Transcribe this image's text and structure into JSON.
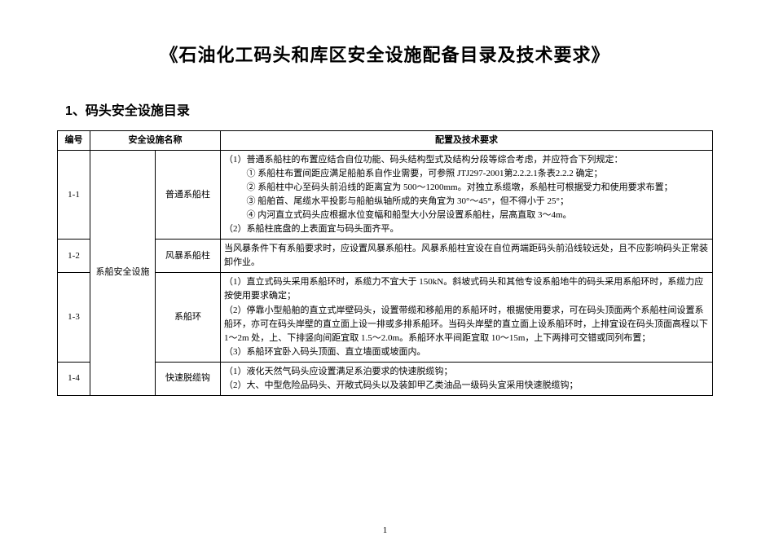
{
  "title": "《石油化工码头和库区安全设施配备目录及技术要求》",
  "section_heading": "1、码头安全设施目录",
  "page_number": "1",
  "table": {
    "headers": {
      "id": "编号",
      "name": "安全设施名称",
      "req": "配置及技术要求"
    },
    "category": "系船安全设施",
    "rows": [
      {
        "id": "1-1",
        "name": "普通系船柱",
        "req_lines": [
          "（1）普通系船柱的布置应结合自位功能、码头结构型式及结构分段等综合考虑，并应符合下列规定：",
          "　① 系船柱布置间距应满足船舶系自作业需要，可参照 JTJ297-2001第2.2.2.1条表2.2.2 确定；",
          "　② 系船柱中心至码头前沿线的距离宜为 500～1200mm。对独立系缆墩，系船柱可根据受力和使用要求布置；",
          "　③ 船舶首、尾缆水平投影与船舶纵轴所成的夹角宜为 30°～45°，但不得小于 25°；",
          "　④ 内河直立式码头应根据水位变幅和船型大小分层设置系船柱，层高直取 3～4m。",
          "（2）系船柱底盘的上表面宜与码头面齐平。"
        ]
      },
      {
        "id": "1-2",
        "name": "风暴系船柱",
        "req_lines": [
          "当风暴条件下有系船要求时，应设置风暴系船柱。风暴系船柱宜设在自位两端距码头前沿线较远处，且不应影响码头正常装卸作业。"
        ]
      },
      {
        "id": "1-3",
        "name": "系船环",
        "req_lines": [
          "（1）直立式码头采用系船环时，系缆力不宜大于 150kN。斜坡式码头和其他专设系船地牛的码头采用系船环时，系缆力应按使用要求确定；",
          "（2）停靠小型船舶的直立式岸壁码头，设置带缆和移船用的系船环时，根据使用要求，可在码头顶面两个系船柱间设置系船环，亦可在码头岸壁的直立面上设一排或多排系船环。当码头岸壁的直立面上设系船环时，上排宜设在码头顶面高程以下 1～2m 处，上、下排竖向间距宜取 1.5～2.0m。系船环水平间距宜取 10～15m，上下两排可交错或同列布置；",
          "（3）系船环宜卧入码头顶面、直立墙面或坡面内。"
        ]
      },
      {
        "id": "1-4",
        "name": "快速脱缆钩",
        "req_lines": [
          "（1）液化天然气码头应设置满足系泊要求的快速脱缆钩；",
          "（2）大、中型危险品码头、开敞式码头以及装卸甲乙类油品一级码头宜采用快速脱缆钩；"
        ]
      }
    ]
  }
}
